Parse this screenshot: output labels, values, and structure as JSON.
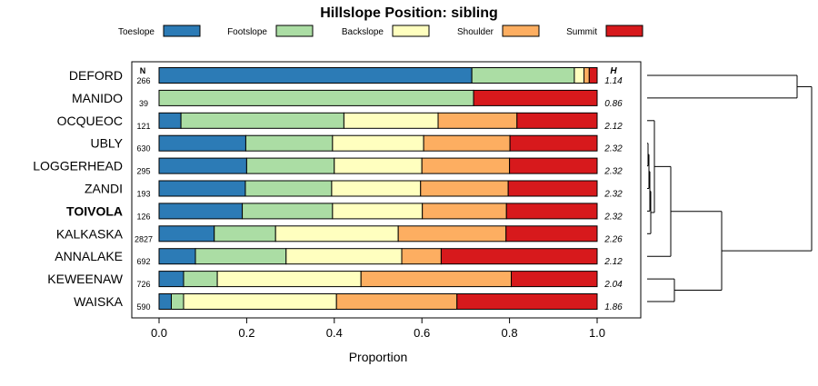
{
  "chart_data": {
    "type": "bar",
    "orientation": "horizontal",
    "stacked": true,
    "title": "Hillslope Position: sibling",
    "xlabel": "Proportion",
    "ylabel": "",
    "xlim": [
      0,
      1
    ],
    "xticks": [
      "0.0",
      "0.2",
      "0.4",
      "0.6",
      "0.8",
      "1.0"
    ],
    "n_header": "N",
    "h_header": "H",
    "highlight": "TOIVOLA",
    "legend_position": "top",
    "series": [
      {
        "name": "Toeslope",
        "color": "#2c7bb6"
      },
      {
        "name": "Footslope",
        "color": "#abdda4"
      },
      {
        "name": "Backslope",
        "color": "#ffffbf"
      },
      {
        "name": "Shoulder",
        "color": "#fdae61"
      },
      {
        "name": "Summit",
        "color": "#d7191c"
      }
    ],
    "categories": [
      "DEFORD",
      "MANIDO",
      "OCQUEOC",
      "UBLY",
      "LOGGERHEAD",
      "ZANDI",
      "TOIVOLA",
      "KALKASKA",
      "ANNALAKE",
      "KEWEENAW",
      "WAISKA"
    ],
    "n": [
      "266",
      "39",
      "121",
      "630",
      "295",
      "193",
      "126",
      "2827",
      "692",
      "726",
      "590"
    ],
    "h": [
      "1.14",
      "0.86",
      "2.12",
      "2.32",
      "2.32",
      "2.32",
      "2.32",
      "2.26",
      "2.12",
      "2.04",
      "1.86"
    ],
    "values": [
      [
        0.714,
        0.234,
        0.022,
        0.012,
        0.018
      ],
      [
        0.0,
        0.718,
        0.0,
        0.0,
        0.282
      ],
      [
        0.05,
        0.372,
        0.215,
        0.18,
        0.183
      ],
      [
        0.198,
        0.198,
        0.208,
        0.197,
        0.199
      ],
      [
        0.2,
        0.2,
        0.2,
        0.2,
        0.2
      ],
      [
        0.197,
        0.197,
        0.203,
        0.2,
        0.203
      ],
      [
        0.19,
        0.206,
        0.205,
        0.192,
        0.207
      ],
      [
        0.126,
        0.14,
        0.28,
        0.246,
        0.208
      ],
      [
        0.083,
        0.207,
        0.264,
        0.09,
        0.356
      ],
      [
        0.056,
        0.077,
        0.328,
        0.343,
        0.196
      ],
      [
        0.028,
        0.028,
        0.349,
        0.275,
        0.32
      ]
    ]
  }
}
